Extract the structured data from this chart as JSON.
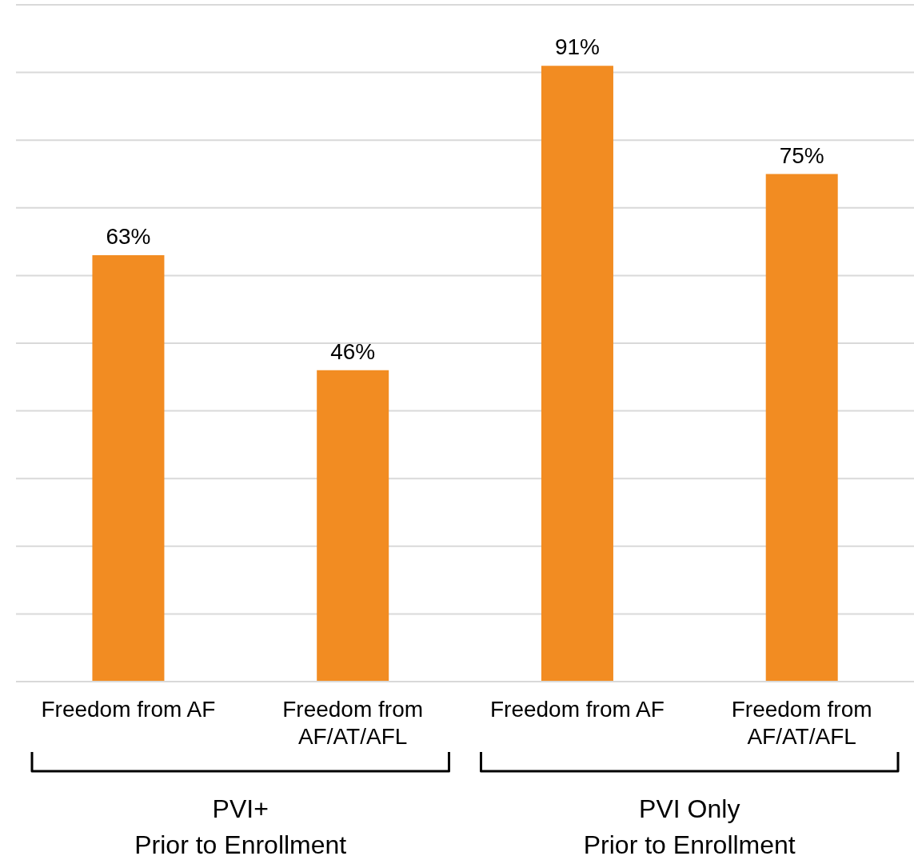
{
  "chart_data": {
    "type": "bar",
    "categories": [
      "Freedom from AF",
      "Freedom from AF/AT/AFL",
      "Freedom from AF",
      "Freedom from AF/AT/AFL"
    ],
    "values": [
      63,
      46,
      91,
      75
    ],
    "color": "#f28c22",
    "value_labels": [
      "63%",
      "46%",
      "91%",
      "75%"
    ],
    "ylim": [
      0,
      100
    ],
    "yticks": [
      {
        "value": 0,
        "label": null
      },
      {
        "value": 10,
        "label": null
      },
      {
        "value": 20,
        "label": null
      },
      {
        "value": 30,
        "label": null
      },
      {
        "value": 40,
        "label": null
      },
      {
        "value": 50,
        "label": null
      },
      {
        "value": 60,
        "label": null
      },
      {
        "value": 70,
        "label": null
      },
      {
        "value": 80,
        "label": null
      },
      {
        "value": 90,
        "label": null
      },
      {
        "value": 100,
        "label": null
      }
    ],
    "grid": "y",
    "tick_labels": "x",
    "legend": false,
    "annotations": [
      "PVI+\nPrior to Enrollment",
      "PVI Only\nPrior to Enrollment"
    ]
  }
}
